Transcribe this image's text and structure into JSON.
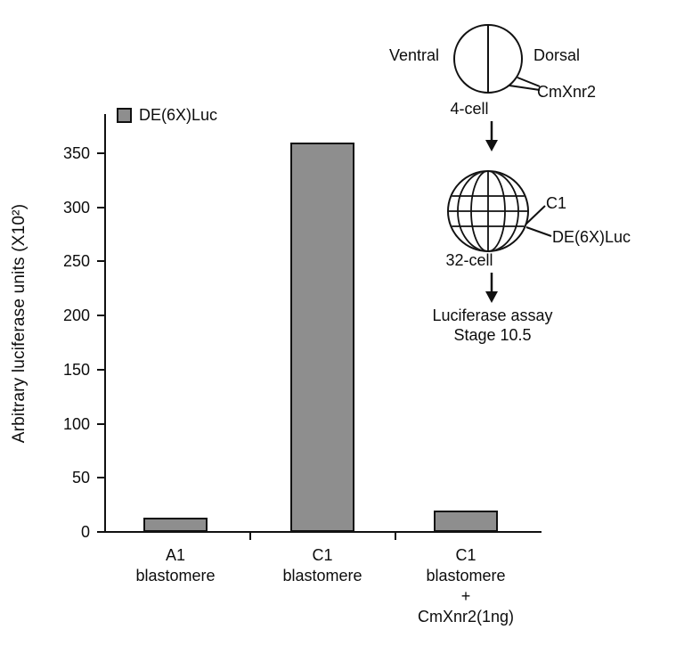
{
  "chart_data": {
    "type": "bar",
    "title": "",
    "ylabel": "Arbitrary luciferase units (X10²)",
    "xlabel": "",
    "legend": {
      "label": "DE(6X)Luc",
      "swatch_color": "#8e8e8e",
      "position": "upper-left"
    },
    "categories": [
      [
        "A1",
        "blastomere"
      ],
      [
        "C1",
        "blastomere"
      ],
      [
        "C1",
        "blastomere",
        "+",
        "CmXnr2(1ng)"
      ]
    ],
    "values": [
      13,
      360,
      20
    ],
    "yticks": [
      0,
      50,
      100,
      150,
      200,
      250,
      300,
      350
    ],
    "ylim": [
      0,
      385
    ],
    "bar_color": "#8e8e8e",
    "grid": false
  },
  "diagram": {
    "ventral_label": "Ventral",
    "dorsal_label": "Dorsal",
    "injected_rna": "CmXnr2",
    "stage1_label": "4-cell",
    "blastomere_label": "C1",
    "reporter_label": "DE(6X)Luc",
    "stage2_label": "32-cell",
    "assay_line1": "Luciferase assay",
    "assay_line2": "Stage 10.5"
  }
}
